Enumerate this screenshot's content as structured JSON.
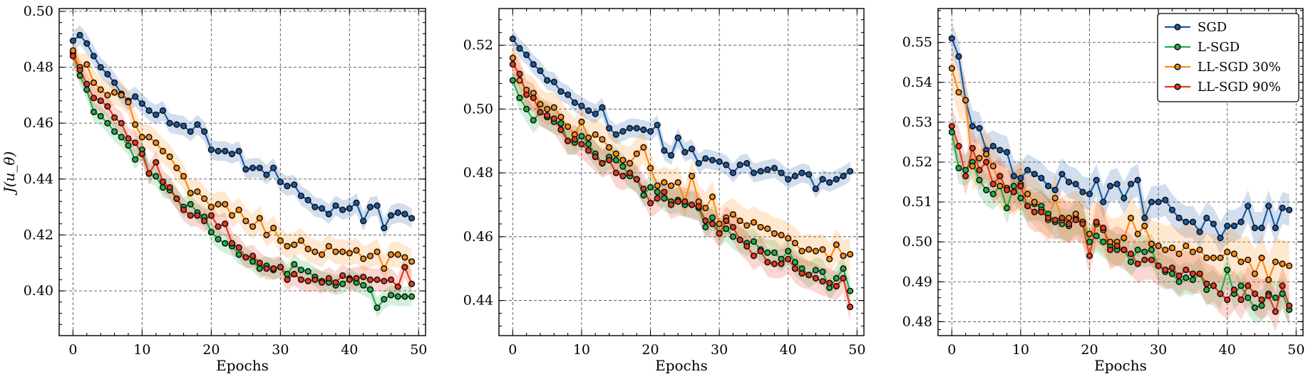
{
  "chart_data": [
    {
      "type": "line",
      "xlabel": "Epochs",
      "ylabel": "J(u_θ)",
      "xlim": [
        -2,
        51
      ],
      "ylim": [
        0.384,
        0.501
      ],
      "xticks": [
        0,
        10,
        20,
        30,
        40,
        50
      ],
      "yticks": [
        0.4,
        0.42,
        0.44,
        0.46,
        0.48,
        0.5
      ],
      "ytick_labels": [
        "0.40",
        "0.42",
        "0.44",
        "0.46",
        "0.48",
        "0.50"
      ],
      "grid": true,
      "series": [
        {
          "name": "SGD",
          "values": [
            0.4895,
            0.4915,
            0.4885,
            0.484,
            0.48,
            0.4775,
            0.4745,
            0.4705,
            0.468,
            0.4695,
            0.467,
            0.4645,
            0.463,
            0.4645,
            0.46,
            0.4595,
            0.459,
            0.457,
            0.4595,
            0.457,
            0.4505,
            0.45,
            0.45,
            0.449,
            0.45,
            0.4435,
            0.444,
            0.444,
            0.4415,
            0.444,
            0.439,
            0.4375,
            0.438,
            0.434,
            0.4325,
            0.43,
            0.4295,
            0.4275,
            0.4305,
            0.429,
            0.4295,
            0.4315,
            0.425,
            0.43,
            0.4305,
            0.4225,
            0.427,
            0.428,
            0.4275,
            0.426
          ],
          "band": 0.0035
        },
        {
          "name": "L-SGD",
          "values": [
            0.485,
            0.477,
            0.472,
            0.464,
            0.4625,
            0.46,
            0.457,
            0.455,
            0.452,
            0.447,
            0.4505,
            0.442,
            0.441,
            0.437,
            0.436,
            0.433,
            0.43,
            0.431,
            0.428,
            0.4265,
            0.421,
            0.4185,
            0.417,
            0.416,
            0.413,
            0.412,
            0.4105,
            0.408,
            0.409,
            0.4075,
            0.4085,
            0.406,
            0.4095,
            0.4075,
            0.407,
            0.405,
            0.4035,
            0.403,
            0.402,
            0.4025,
            0.4045,
            0.403,
            0.402,
            0.4005,
            0.394,
            0.397,
            0.3985,
            0.398,
            0.398,
            0.398
          ],
          "band": 0.0035
        },
        {
          "name": "LL-SGD 30%",
          "values": [
            0.486,
            0.48,
            0.481,
            0.4745,
            0.472,
            0.47,
            0.471,
            0.47,
            0.4675,
            0.4595,
            0.455,
            0.455,
            0.453,
            0.45,
            0.448,
            0.444,
            0.441,
            0.435,
            0.4355,
            0.433,
            0.43,
            0.431,
            0.431,
            0.427,
            0.429,
            0.425,
            0.423,
            0.426,
            0.42,
            0.4225,
            0.418,
            0.416,
            0.4165,
            0.418,
            0.415,
            0.414,
            0.413,
            0.416,
            0.414,
            0.414,
            0.4135,
            0.4145,
            0.4115,
            0.4125,
            0.414,
            0.408,
            0.413,
            0.413,
            0.412,
            0.4105
          ],
          "band": 0.0045
        },
        {
          "name": "LL-SGD 90%",
          "values": [
            0.484,
            0.479,
            0.474,
            0.469,
            0.468,
            0.466,
            0.462,
            0.46,
            0.4545,
            0.453,
            0.449,
            0.442,
            0.446,
            0.439,
            0.437,
            0.433,
            0.429,
            0.427,
            0.427,
            0.425,
            0.427,
            0.423,
            0.424,
            0.417,
            0.4155,
            0.412,
            0.4125,
            0.41,
            0.408,
            0.408,
            0.4085,
            0.404,
            0.406,
            0.404,
            0.4035,
            0.404,
            0.403,
            0.4045,
            0.403,
            0.4055,
            0.404,
            0.4045,
            0.405,
            0.404,
            0.404,
            0.4035,
            0.404,
            0.4015,
            0.4085,
            0.4025
          ],
          "band": 0.004
        }
      ]
    },
    {
      "type": "line",
      "xlabel": "Epochs",
      "ylabel": "",
      "xlim": [
        -2,
        51
      ],
      "ylim": [
        0.429,
        0.5315
      ],
      "xticks": [
        0,
        10,
        20,
        30,
        40,
        50
      ],
      "yticks": [
        0.44,
        0.46,
        0.48,
        0.5,
        0.52
      ],
      "ytick_labels": [
        "0.44",
        "0.46",
        "0.48",
        "0.50",
        "0.52"
      ],
      "grid": true,
      "series": [
        {
          "name": "SGD",
          "values": [
            0.522,
            0.519,
            0.517,
            0.514,
            0.512,
            0.509,
            0.5085,
            0.5055,
            0.5045,
            0.502,
            0.501,
            0.4995,
            0.4985,
            0.5005,
            0.494,
            0.492,
            0.493,
            0.494,
            0.494,
            0.4935,
            0.493,
            0.495,
            0.487,
            0.4855,
            0.491,
            0.4865,
            0.4875,
            0.483,
            0.4845,
            0.484,
            0.4835,
            0.4825,
            0.48,
            0.4825,
            0.483,
            0.48,
            0.4805,
            0.481,
            0.4815,
            0.48,
            0.478,
            0.479,
            0.48,
            0.4795,
            0.475,
            0.478,
            0.477,
            0.478,
            0.479,
            0.4805
          ],
          "band": 0.003
        },
        {
          "name": "L-SGD",
          "values": [
            0.509,
            0.5035,
            0.5,
            0.4965,
            0.499,
            0.4975,
            0.496,
            0.4955,
            0.49,
            0.4895,
            0.4915,
            0.489,
            0.486,
            0.483,
            0.485,
            0.484,
            0.482,
            0.479,
            0.478,
            0.473,
            0.4755,
            0.474,
            0.472,
            0.471,
            0.4715,
            0.47,
            0.47,
            0.469,
            0.463,
            0.466,
            0.461,
            0.4625,
            0.46,
            0.459,
            0.458,
            0.4585,
            0.456,
            0.455,
            0.455,
            0.453,
            0.4555,
            0.452,
            0.45,
            0.448,
            0.4495,
            0.449,
            0.444,
            0.447,
            0.45,
            0.443
          ],
          "band": 0.004
        },
        {
          "name": "LL-SGD 30%",
          "values": [
            0.516,
            0.509,
            0.506,
            0.505,
            0.5015,
            0.5,
            0.5005,
            0.4975,
            0.4945,
            0.492,
            0.496,
            0.491,
            0.492,
            0.4905,
            0.488,
            0.486,
            0.484,
            0.483,
            0.486,
            0.488,
            0.4815,
            0.476,
            0.477,
            0.476,
            0.477,
            0.471,
            0.479,
            0.471,
            0.469,
            0.4725,
            0.464,
            0.466,
            0.467,
            0.465,
            0.4635,
            0.4645,
            0.463,
            0.4625,
            0.461,
            0.4605,
            0.4595,
            0.458,
            0.4555,
            0.456,
            0.4555,
            0.456,
            0.453,
            0.4575,
            0.454,
            0.4545
          ],
          "band": 0.005
        },
        {
          "name": "LL-SGD 90%",
          "values": [
            0.514,
            0.511,
            0.5045,
            0.5035,
            0.499,
            0.498,
            0.497,
            0.4935,
            0.49,
            0.4905,
            0.489,
            0.487,
            0.485,
            0.483,
            0.484,
            0.48,
            0.479,
            0.48,
            0.478,
            0.475,
            0.4705,
            0.472,
            0.474,
            0.47,
            0.471,
            0.471,
            0.47,
            0.4695,
            0.465,
            0.464,
            0.461,
            0.465,
            0.463,
            0.459,
            0.457,
            0.454,
            0.4555,
            0.452,
            0.4515,
            0.4515,
            0.453,
            0.45,
            0.4485,
            0.448,
            0.447,
            0.446,
            0.4455,
            0.4445,
            0.447,
            0.438
          ],
          "band": 0.0045
        }
      ]
    },
    {
      "type": "line",
      "xlabel": "Epochs",
      "ylabel": "",
      "xlim": [
        -2,
        51
      ],
      "ylim": [
        0.4765,
        0.5585
      ],
      "xticks": [
        0,
        10,
        20,
        30,
        40,
        50
      ],
      "yticks": [
        0.48,
        0.49,
        0.5,
        0.51,
        0.52,
        0.53,
        0.54,
        0.55
      ],
      "ytick_labels": [
        "0.48",
        "0.49",
        "0.50",
        "0.51",
        "0.52",
        "0.53",
        "0.54",
        "0.55"
      ],
      "grid": true,
      "legend": {
        "location": "top-right",
        "entries": [
          "SGD",
          "L-SGD",
          "LL-SGD 30%",
          "LL-SGD 90%"
        ]
      },
      "series": [
        {
          "name": "SGD",
          "values": [
            0.551,
            0.5465,
            0.5355,
            0.529,
            0.5285,
            0.523,
            0.524,
            0.523,
            0.5225,
            0.5165,
            0.516,
            0.518,
            0.517,
            0.516,
            0.514,
            0.513,
            0.517,
            0.515,
            0.5145,
            0.5125,
            0.512,
            0.5155,
            0.51,
            0.514,
            0.5145,
            0.511,
            0.5145,
            0.5155,
            0.506,
            0.51,
            0.51,
            0.5105,
            0.508,
            0.506,
            0.505,
            0.505,
            0.5025,
            0.506,
            0.5045,
            0.501,
            0.504,
            0.504,
            0.505,
            0.509,
            0.5035,
            0.5035,
            0.509,
            0.5035,
            0.5085,
            0.508
          ],
          "band": 0.004
        },
        {
          "name": "L-SGD",
          "values": [
            0.5275,
            0.5185,
            0.518,
            0.52,
            0.5155,
            0.513,
            0.512,
            0.514,
            0.5085,
            0.514,
            0.511,
            0.509,
            0.5095,
            0.509,
            0.507,
            0.505,
            0.5045,
            0.504,
            0.506,
            0.505,
            0.5,
            0.5015,
            0.5,
            0.499,
            0.498,
            0.498,
            0.495,
            0.498,
            0.4975,
            0.498,
            0.494,
            0.4925,
            0.492,
            0.49,
            0.491,
            0.4905,
            0.492,
            0.488,
            0.489,
            0.487,
            0.493,
            0.487,
            0.489,
            0.486,
            0.4835,
            0.484,
            0.487,
            0.486,
            0.487,
            0.483
          ],
          "band": 0.004
        },
        {
          "name": "LL-SGD 30%",
          "values": [
            0.5435,
            0.5375,
            0.5355,
            0.519,
            0.521,
            0.522,
            0.519,
            0.514,
            0.5135,
            0.5125,
            0.5145,
            0.512,
            0.51,
            0.508,
            0.5055,
            0.511,
            0.5055,
            0.506,
            0.507,
            0.505,
            0.502,
            0.5045,
            0.503,
            0.5,
            0.5,
            0.501,
            0.506,
            0.502,
            0.504,
            0.4995,
            0.499,
            0.498,
            0.4985,
            0.497,
            0.499,
            0.4975,
            0.498,
            0.496,
            0.496,
            0.496,
            0.4975,
            0.497,
            0.495,
            0.4955,
            0.492,
            0.496,
            0.4905,
            0.495,
            0.4945,
            0.494
          ],
          "band": 0.006
        },
        {
          "name": "LL-SGD 90%",
          "values": [
            0.529,
            0.524,
            0.5165,
            0.5235,
            0.518,
            0.52,
            0.5145,
            0.5165,
            0.513,
            0.5125,
            0.514,
            0.509,
            0.5075,
            0.5075,
            0.506,
            0.5055,
            0.506,
            0.5045,
            0.5055,
            0.5045,
            0.4965,
            0.505,
            0.5035,
            0.498,
            0.499,
            0.498,
            0.497,
            0.4945,
            0.4955,
            0.4955,
            0.494,
            0.493,
            0.4935,
            0.4915,
            0.493,
            0.492,
            0.492,
            0.4895,
            0.489,
            0.487,
            0.4855,
            0.488,
            0.4855,
            0.489,
            0.487,
            0.4855,
            0.4865,
            0.4825,
            0.489,
            0.484
          ],
          "band": 0.005
        }
      ]
    }
  ],
  "colors": {
    "SGD": "#1c5aa3",
    "L-SGD": "#22b04a",
    "LL-SGD 30%": "#ff8c14",
    "LL-SGD 90%": "#e8391e"
  }
}
